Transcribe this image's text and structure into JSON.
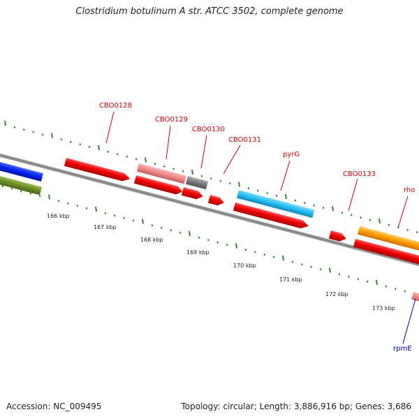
{
  "title": "Clostridium botulinum A str. ATCC 3502, complete genome",
  "footer": {
    "accession": "Accession: NC_009495",
    "summary": "Topology: circular; Length: 3,886,916 bp; Genes: 3,686"
  },
  "gene_labels": {
    "cbo0128": "CBO0128",
    "cbo0129": "CBO0129",
    "cbo0130": "CBO0130",
    "cbo0131": "CBO0131",
    "pyrG": "pyrG",
    "cbo0133": "CBO0133",
    "rho": "rho",
    "rpmE": "rpmE"
  },
  "ticks": [
    "166 kbp",
    "167 kbp",
    "168 kbp",
    "169 kbp",
    "170 kbp",
    "171 kbp",
    "172 kbp",
    "173 kbp"
  ],
  "colors": {
    "backbone": "#8a8a8a",
    "cds_red": "#ee0000",
    "cds_pink": "#ee8888",
    "cds_gray": "#777777",
    "cds_cyan": "#22bbee",
    "cds_orange": "#ff9900",
    "cds_blue": "#0022ee",
    "cds_olive": "#6b8e23",
    "tick_green": "#2e8b2e",
    "label_red": "#d40000",
    "label_blue": "#0000bb"
  }
}
